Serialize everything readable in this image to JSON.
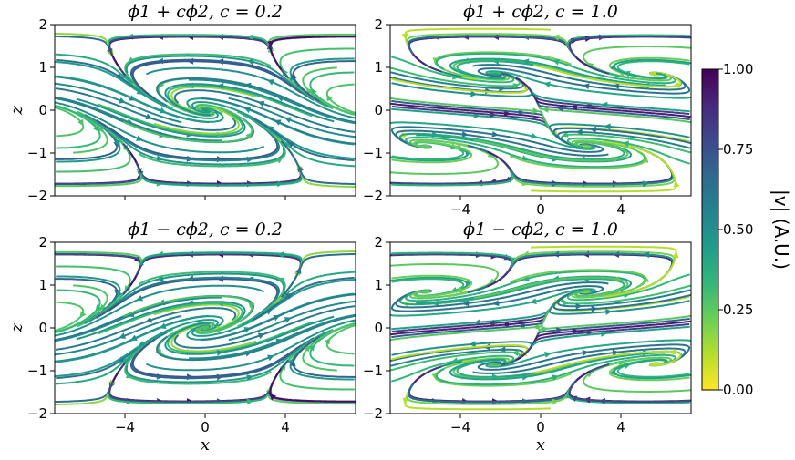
{
  "chart_data": [
    {
      "type": "streamplot",
      "title": "ϕ1 + cϕ2, c = 0.2",
      "combination": "plus",
      "c": 0.2,
      "xlabel": "",
      "ylabel": "z",
      "xlim": [
        -7.5,
        7.5
      ],
      "ylim": [
        -2,
        2
      ],
      "xticks": [
        -4,
        0,
        4
      ],
      "xtick_labels": [
        "",
        "",
        ""
      ],
      "yticks": [
        -2,
        -1,
        0,
        1,
        2
      ],
      "ytick_labels": [
        "−2",
        "−1",
        "0",
        "1",
        "2"
      ]
    },
    {
      "type": "streamplot",
      "title": "ϕ1 + cϕ2, c = 1.0",
      "combination": "plus",
      "c": 1.0,
      "xlabel": "",
      "ylabel": "",
      "xlim": [
        -7.5,
        7.5
      ],
      "ylim": [
        -2,
        2
      ],
      "xticks": [
        -4,
        0,
        4
      ],
      "xtick_labels": [
        "−4",
        "0",
        "4"
      ],
      "yticks": [
        -2,
        -1,
        0,
        1,
        2
      ],
      "ytick_labels": [
        "−2",
        "−1",
        "0",
        "1",
        "2"
      ]
    },
    {
      "type": "streamplot",
      "title": "ϕ1 − cϕ2, c = 0.2",
      "combination": "minus",
      "c": 0.2,
      "xlabel": "x",
      "ylabel": "z",
      "xlim": [
        -7.5,
        7.5
      ],
      "ylim": [
        -2,
        2
      ],
      "xticks": [
        -4,
        0,
        4
      ],
      "xtick_labels": [
        "−4",
        "0",
        "4"
      ],
      "yticks": [
        -2,
        -1,
        0,
        1,
        2
      ],
      "ytick_labels": [
        "−2",
        "−1",
        "0",
        "1",
        "2"
      ]
    },
    {
      "type": "streamplot",
      "title": "ϕ1 − cϕ2, c = 1.0",
      "combination": "minus",
      "c": 1.0,
      "xlabel": "x",
      "ylabel": "",
      "xlim": [
        -7.5,
        7.5
      ],
      "ylim": [
        -2,
        2
      ],
      "xticks": [
        -4,
        0,
        4
      ],
      "xtick_labels": [
        "−4",
        "0",
        "4"
      ],
      "yticks": [
        -2,
        -1,
        0,
        1,
        2
      ],
      "ytick_labels": [
        "−2",
        "−1",
        "0",
        "1",
        "2"
      ]
    }
  ],
  "colorbar": {
    "label": "|v| (A.U.)",
    "colormap": "viridis",
    "range": [
      0.0,
      1.0
    ],
    "ticks": [
      0.0,
      0.25,
      0.5,
      0.75,
      1.0
    ],
    "tick_labels": [
      "0.00",
      "0.25",
      "0.50",
      "0.75",
      "1.00"
    ]
  },
  "colors": {
    "viridis": [
      "#fde725",
      "#b5de2b",
      "#6ece58",
      "#35b779",
      "#1f9e89",
      "#26828e",
      "#31688e",
      "#3e4989",
      "#482878",
      "#440154"
    ]
  }
}
